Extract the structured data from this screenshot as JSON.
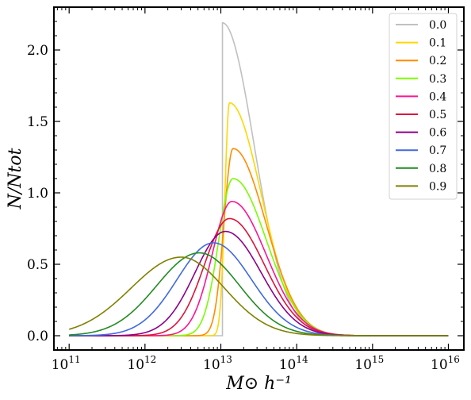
{
  "chart_data": {
    "type": "line",
    "xlabel": "M⊙ h⁻¹",
    "ylabel": "N/Ntot",
    "xscale": "log",
    "xlim": [
      63000000000.0,
      1.6e+16
    ],
    "ylim": [
      -0.1,
      2.3
    ],
    "xticks": [
      {
        "value": 100000000000.0,
        "base": "10",
        "exp": "11"
      },
      {
        "value": 1000000000000.0,
        "base": "10",
        "exp": "12"
      },
      {
        "value": 10000000000000.0,
        "base": "10",
        "exp": "13"
      },
      {
        "value": 100000000000000.0,
        "base": "10",
        "exp": "14"
      },
      {
        "value": 1000000000000000.0,
        "base": "10",
        "exp": "15"
      },
      {
        "value": 1e+16,
        "base": "10",
        "exp": "16"
      }
    ],
    "yticks": [
      {
        "value": 0.0,
        "label": "0.0"
      },
      {
        "value": 0.5,
        "label": "0.5"
      },
      {
        "value": 1.0,
        "label": "1.0"
      },
      {
        "value": 1.5,
        "label": "1.5"
      },
      {
        "value": 2.0,
        "label": "2.0"
      }
    ],
    "legend_position": "top-right",
    "grid": false,
    "series": [
      {
        "name": "0.0",
        "color": "#c0c0c0",
        "peak_x": 10500000000000.0,
        "peak_y": 2.19,
        "sigma_left": 0.0,
        "sigma_right": 0.42
      },
      {
        "name": "0.1",
        "color": "#ffd700",
        "peak_x": 13000000000000.0,
        "peak_y": 1.63,
        "sigma_left": 0.06,
        "sigma_right": 0.42
      },
      {
        "name": "0.2",
        "color": "#ff8c00",
        "peak_x": 14500000000000.0,
        "peak_y": 1.31,
        "sigma_left": 0.12,
        "sigma_right": 0.43
      },
      {
        "name": "0.3",
        "color": "#7cfc00",
        "peak_x": 14500000000000.0,
        "peak_y": 1.1,
        "sigma_left": 0.19,
        "sigma_right": 0.44
      },
      {
        "name": "0.4",
        "color": "#ff1493",
        "peak_x": 14000000000000.0,
        "peak_y": 0.94,
        "sigma_left": 0.26,
        "sigma_right": 0.45
      },
      {
        "name": "0.5",
        "color": "#dc143c",
        "peak_x": 13000000000000.0,
        "peak_y": 0.82,
        "sigma_left": 0.33,
        "sigma_right": 0.46
      },
      {
        "name": "0.6",
        "color": "#8b008b",
        "peak_x": 11500000000000.0,
        "peak_y": 0.73,
        "sigma_left": 0.4,
        "sigma_right": 0.47
      },
      {
        "name": "0.7",
        "color": "#4169e1",
        "peak_x": 8000000000000.0,
        "peak_y": 0.65,
        "sigma_left": 0.48,
        "sigma_right": 0.5
      },
      {
        "name": "0.8",
        "color": "#228b22",
        "peak_x": 5200000000000.0,
        "peak_y": 0.58,
        "sigma_left": 0.56,
        "sigma_right": 0.53
      },
      {
        "name": "0.9",
        "color": "#808000",
        "peak_x": 3000000000000.0,
        "peak_y": 0.55,
        "sigma_left": 0.66,
        "sigma_right": 0.57
      }
    ]
  }
}
